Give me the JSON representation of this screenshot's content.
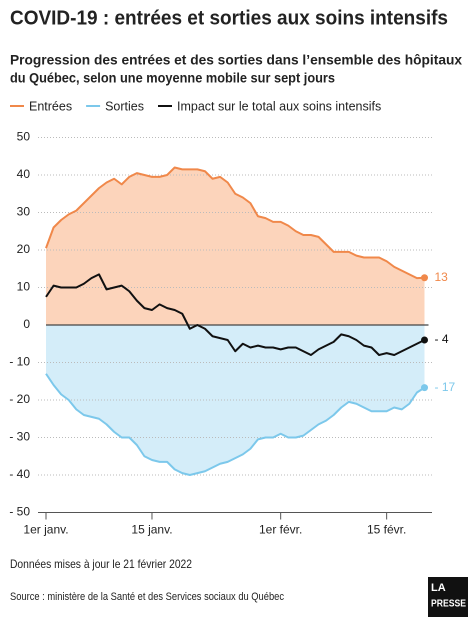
{
  "chart_data": {
    "type": "line",
    "title": "COVID-19 : entrées et sorties aux soins intensifs",
    "subtitle": [
      "Progression des entrées et des sorties dans l’ensemble des hôpitaux",
      "du Québec, selon une moyenne mobile sur sept jours"
    ],
    "categories": [
      "1er janv.",
      null,
      null,
      null,
      null,
      null,
      null,
      null,
      null,
      null,
      null,
      null,
      null,
      null,
      "15 janv.",
      null,
      null,
      null,
      null,
      null,
      null,
      null,
      null,
      null,
      null,
      null,
      null,
      null,
      null,
      null,
      null,
      "1er févr.",
      null,
      null,
      null,
      null,
      null,
      null,
      null,
      null,
      null,
      null,
      null,
      null,
      null,
      "15 févr.",
      null,
      null,
      null,
      null,
      null
    ],
    "series": [
      {
        "name": "Entrées",
        "color": "#f0884a",
        "fill": "#fcd4bb",
        "values": [
          20.5,
          26,
          28,
          29.5,
          30.5,
          32.5,
          34.5,
          36.5,
          38,
          39,
          37.5,
          39.5,
          40.5,
          40,
          39.5,
          39.5,
          40,
          42,
          41.5,
          41.5,
          41.5,
          41,
          39,
          39.5,
          38,
          35,
          34,
          32.5,
          29,
          28.5,
          27.5,
          27.5,
          26.5,
          25,
          24,
          24,
          23.5,
          21.5,
          19.5,
          19.5,
          19.5,
          18.5,
          18,
          18,
          18,
          17,
          15.5,
          14.5,
          13.5,
          12.5,
          12.6
        ],
        "value_labels": [
          null,
          null,
          null,
          null,
          null,
          null,
          null,
          null,
          null,
          null,
          null,
          null,
          null,
          null,
          null,
          null,
          null,
          null,
          null,
          null,
          null,
          null,
          null,
          null,
          null,
          null,
          null,
          null,
          null,
          null,
          null,
          null,
          null,
          null,
          null,
          null,
          null,
          null,
          null,
          null,
          null,
          null,
          null,
          null,
          null,
          null,
          null,
          null,
          null,
          null,
          "13"
        ]
      },
      {
        "name": "Sorties",
        "color": "#7cc8eb",
        "fill": "#d4edf9",
        "values": [
          -13,
          -16,
          -18.5,
          -20,
          -22.5,
          -24,
          -24.5,
          -25,
          -26.5,
          -28.5,
          -30,
          -30,
          -32,
          -35,
          -36,
          -36.5,
          -36.5,
          -38.5,
          -39.5,
          -40,
          -39.5,
          -39,
          -38,
          -37,
          -36.5,
          -35.5,
          -34.5,
          -33,
          -30.5,
          -30,
          -30,
          -29,
          -30,
          -30,
          -29.5,
          -28,
          -26.5,
          -25.5,
          -24,
          -22,
          -20.5,
          -21,
          -22,
          -23,
          -23,
          -23,
          -22,
          -22.5,
          -21,
          -18,
          -16.7
        ],
        "value_labels": [
          null,
          null,
          null,
          null,
          null,
          null,
          null,
          null,
          null,
          null,
          null,
          null,
          null,
          null,
          null,
          null,
          null,
          null,
          null,
          null,
          null,
          null,
          null,
          null,
          null,
          null,
          null,
          null,
          null,
          null,
          null,
          null,
          null,
          null,
          null,
          null,
          null,
          null,
          null,
          null,
          null,
          null,
          null,
          null,
          null,
          null,
          null,
          null,
          null,
          null,
          "- 17"
        ]
      },
      {
        "name": "Impact sur le total aux soins intensifs",
        "color": "#111111",
        "fill": null,
        "values": [
          7.5,
          10.5,
          10,
          10,
          10,
          11,
          12.5,
          13.5,
          9.5,
          10,
          10.5,
          9,
          6.5,
          4.5,
          4,
          5.5,
          4.5,
          4,
          3,
          -1,
          0,
          -1,
          -3,
          -3.5,
          -4,
          -7,
          -5,
          -6,
          -5.5,
          -6,
          -6,
          -6.5,
          -6,
          -6,
          -7,
          -8,
          -6.5,
          -5.5,
          -4.5,
          -2.5,
          -3,
          -4,
          -5.5,
          -6,
          -8,
          -7.5,
          -8,
          -7,
          -6,
          -5,
          -4
        ],
        "value_labels": [
          null,
          null,
          null,
          null,
          null,
          null,
          null,
          null,
          null,
          null,
          null,
          null,
          null,
          null,
          null,
          null,
          null,
          null,
          null,
          null,
          null,
          null,
          null,
          null,
          null,
          null,
          null,
          null,
          null,
          null,
          null,
          null,
          null,
          null,
          null,
          null,
          null,
          null,
          null,
          null,
          null,
          null,
          null,
          null,
          null,
          null,
          null,
          null,
          null,
          null,
          "- 4"
        ]
      }
    ],
    "ylim": [
      -50,
      50
    ],
    "yticks": [
      50,
      40,
      30,
      20,
      10,
      0,
      {
        "value": -10,
        "label": "- 10"
      },
      {
        "value": -20,
        "label": "- 20"
      },
      {
        "value": -30,
        "label": "- 30"
      },
      {
        "value": -40,
        "label": "- 40"
      },
      {
        "value": -50,
        "label": "- 50"
      }
    ],
    "grid": true,
    "note": "Données mises à jour le 21 février 2022",
    "source": "Source : ministère de la Santé et des Services sociaux du Québec"
  },
  "logo": {
    "top": "LA",
    "bottom": "PRESSE"
  }
}
